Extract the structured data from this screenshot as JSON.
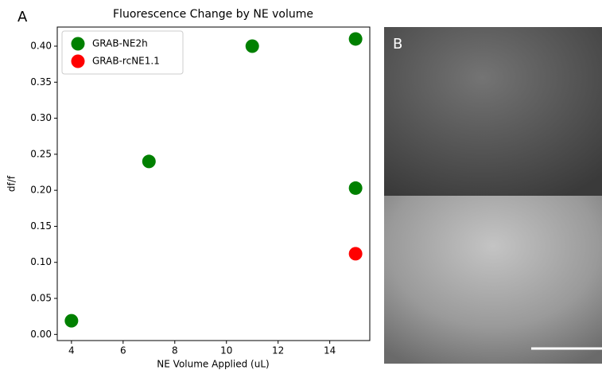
{
  "chart_data": {
    "type": "scatter",
    "title": "Fluorescence Change by NE volume",
    "panel_labels": [
      "A",
      "B"
    ],
    "xlabel": "NE Volume Applied (uL)",
    "ylabel": "df/f",
    "series": [
      {
        "name": "GRAB-NE2h",
        "color": "#008000",
        "x": [
          4,
          7,
          11,
          15,
          15
        ],
        "values": [
          0.019,
          0.24,
          0.4,
          0.41,
          0.203
        ]
      },
      {
        "name": "GRAB-rcNE1.1",
        "color": "#ff0000",
        "x": [
          15
        ],
        "values": [
          0.112
        ]
      }
    ],
    "xlim": [
      3.45,
      15.55
    ],
    "xticks": [
      4,
      6,
      8,
      10,
      12,
      14
    ],
    "ylim": [
      -0.0085,
      0.4265
    ],
    "yticks": [
      {
        "value": 0,
        "label": "0.00"
      },
      0.05,
      {
        "value": 0.1,
        "label": "0.10"
      },
      0.15,
      {
        "value": 0.2,
        "label": "0.20"
      },
      0.25,
      {
        "value": 0.3,
        "label": "0.30"
      },
      0.35,
      {
        "value": 0.4,
        "label": "0.40"
      }
    ],
    "legend": "upper left",
    "grid": false
  }
}
